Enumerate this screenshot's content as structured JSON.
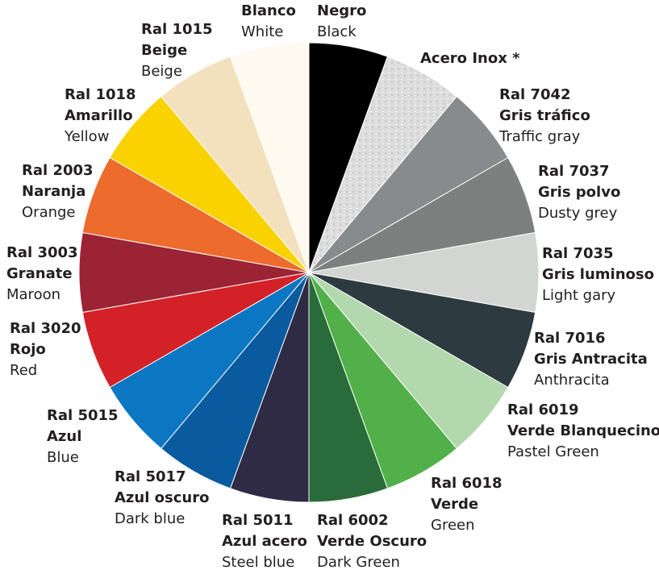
{
  "slices": [
    {
      "name": "Negro",
      "english": "Black",
      "color": "#000000"
    },
    {
      "name": "Acero Inox *",
      "color": "#dcdcdc"
    },
    {
      "code": "Ral 7042",
      "name": "Gris tráfico",
      "english": "Traffic gray",
      "color": "#888b8d"
    },
    {
      "code": "Ral 7037",
      "name": "Gris polvo",
      "english": "Dusty grey",
      "color": "#7e807f"
    },
    {
      "code": "Ral 7035",
      "name": "Gris luminoso",
      "english": "Light gary",
      "color": "#d3d5d2"
    },
    {
      "code": "Ral 7016",
      "name": "Gris Antracita",
      "english": "Anthracita",
      "color": "#2d3a40"
    },
    {
      "code": "Ral 6019",
      "name": "Verde Blanquecino",
      "english": "Pastel Green",
      "color": "#b4d8ae"
    },
    {
      "code": "Ral 6018",
      "name": "Verde",
      "english": "Green",
      "color": "#52b04a"
    },
    {
      "code": "Ral 6002",
      "name": "Verde Oscuro",
      "english": "Dark Green",
      "color": "#2a6c39"
    },
    {
      "code": "Ral 5011",
      "name": "Azul acero",
      "english": "Steel blue",
      "color": "#2f2b45"
    },
    {
      "code": "Ral 5017",
      "name": "Azul oscuro",
      "english": "Dark blue",
      "color": "#0a5a9f"
    },
    {
      "code": "Ral 5015",
      "name": "Azul",
      "english": "Blue",
      "color": "#0b77c3"
    },
    {
      "code": "Ral 3020",
      "name": "Rojo",
      "english": "Red",
      "color": "#d42127"
    },
    {
      "code": "Ral 3003",
      "name": "Granate",
      "english": "Maroon",
      "color": "#9b2434"
    },
    {
      "code": "Ral 2003",
      "name": "Naranja",
      "english": "Orange",
      "color": "#ec6b2d"
    },
    {
      "code": "Ral 1018",
      "name": "Amarillo",
      "english": "Yellow",
      "color": "#f9d200"
    },
    {
      "code": "Ral 1015",
      "name": "Beige",
      "english": "Beige",
      "color": "#f3e0bd"
    },
    {
      "name": "Blanco",
      "english": "White",
      "color": "#fffaf0"
    }
  ]
}
